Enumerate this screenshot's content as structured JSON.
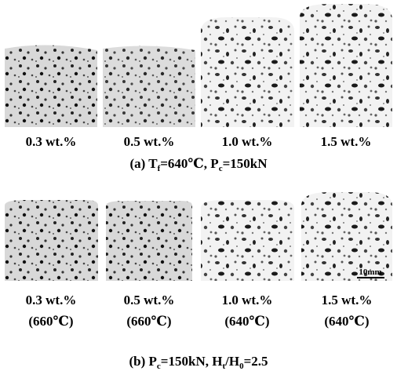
{
  "panels": [
    {
      "caption": [
        "(a)  T",
        "f",
        "=640℃,  P",
        "c",
        "=150kN"
      ],
      "samples": [
        {
          "label": "0.3 wt.%"
        },
        {
          "label": "0.5 wt.%"
        },
        {
          "label": "1.0 wt.%"
        },
        {
          "label": "1.5 wt.%"
        }
      ]
    },
    {
      "caption": [
        "(b)  P",
        "c",
        "=150kN,  H",
        "t",
        "/H",
        "0",
        "=2.5"
      ],
      "samples": [
        {
          "label": "0.3 wt.%",
          "temperature": "(660℃)"
        },
        {
          "label": "0.5 wt.%",
          "temperature": "(660℃)"
        },
        {
          "label": "1.0 wt.%",
          "temperature": "(640℃)"
        },
        {
          "label": "1.5 wt.%",
          "temperature": "(640℃)"
        }
      ]
    }
  ],
  "scale_bar": "10mm"
}
